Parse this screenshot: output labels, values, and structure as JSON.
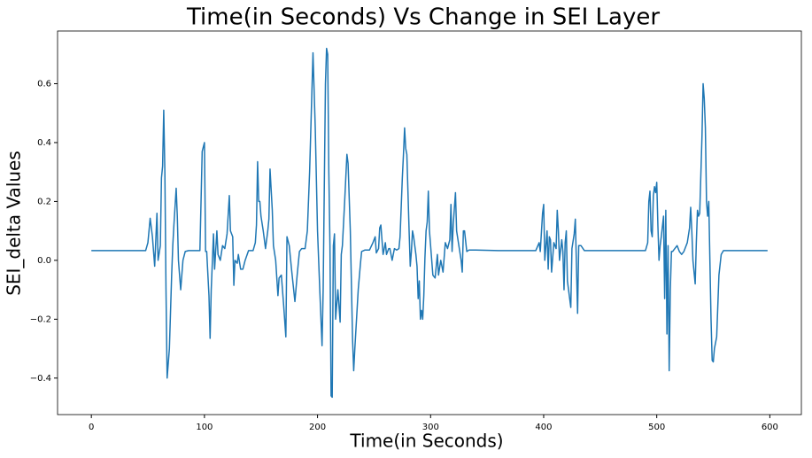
{
  "chart_data": {
    "type": "line",
    "title": "Time(in Seconds) Vs Change in SEI Layer",
    "x_label": "Time(in Seconds)",
    "y_label": "SEI_delta Values",
    "x": [
      0,
      48,
      50,
      52,
      54,
      56,
      58,
      59,
      61,
      62,
      63,
      64,
      65,
      66,
      67,
      69,
      71,
      72,
      73,
      75,
      76,
      77,
      79,
      81,
      83,
      86,
      96,
      98,
      100,
      101,
      102,
      104,
      105,
      106,
      108,
      109,
      111,
      112,
      114,
      116,
      118,
      120,
      122,
      123,
      125,
      126,
      127,
      129,
      130,
      132,
      134,
      136,
      139,
      143,
      145,
      146,
      147,
      148,
      149,
      150,
      152,
      154,
      156,
      157,
      158,
      160,
      161,
      163,
      165,
      166,
      168,
      170,
      172,
      173,
      175,
      177,
      180,
      182,
      184,
      186,
      189,
      191,
      193,
      196,
      198,
      200,
      202,
      204,
      205,
      207,
      208,
      209,
      210,
      211,
      212,
      213,
      214,
      215,
      216,
      218,
      220,
      221,
      222,
      224,
      226,
      227,
      229,
      231,
      232,
      233,
      236,
      238,
      239,
      242,
      246,
      249,
      251,
      252,
      254,
      255,
      256,
      258,
      260,
      261,
      263,
      264,
      266,
      268,
      270,
      272,
      273,
      275,
      276,
      277,
      278,
      279,
      281,
      282,
      283,
      284,
      285,
      287,
      288,
      289,
      290,
      291,
      292,
      293,
      294,
      295,
      296,
      297,
      298,
      299,
      300,
      302,
      304,
      306,
      307,
      309,
      311,
      313,
      315,
      317,
      318,
      319,
      320,
      322,
      323,
      325,
      327,
      328,
      329,
      330,
      332,
      334,
      340,
      360,
      393,
      396,
      397,
      399,
      400,
      401,
      402,
      403,
      404,
      405,
      406,
      407,
      409,
      411,
      412,
      413,
      414,
      416,
      417,
      418,
      419,
      420,
      421,
      422,
      424,
      425,
      427,
      428,
      430,
      431,
      433,
      436,
      490,
      492,
      493,
      494,
      495,
      496,
      497,
      498,
      499,
      500,
      501,
      502,
      503,
      504,
      506,
      507,
      508,
      509,
      510,
      511,
      512,
      513,
      514,
      516,
      518,
      520,
      522,
      524,
      527,
      529,
      530,
      531,
      532,
      534,
      535,
      536,
      537,
      538,
      540,
      541,
      542,
      543,
      544,
      545,
      546,
      547,
      548,
      549,
      550,
      551,
      553,
      555,
      557,
      559,
      598
    ],
    "series": [
      {
        "color": "#1f77b4",
        "values": [
          0.033,
          0.033,
          0.06,
          0.143,
          0.08,
          -0.02,
          0.16,
          0.0,
          0.05,
          0.28,
          0.32,
          0.51,
          0.3,
          -0.1,
          -0.4,
          -0.3,
          -0.05,
          0.05,
          0.12,
          0.245,
          0.15,
          0.0,
          -0.1,
          0.0,
          0.03,
          0.033,
          0.033,
          0.37,
          0.4,
          0.03,
          0.03,
          -0.12,
          -0.265,
          -0.1,
          0.09,
          -0.03,
          0.1,
          0.02,
          0.0,
          0.05,
          0.04,
          0.09,
          0.22,
          0.1,
          0.08,
          -0.085,
          0.0,
          -0.01,
          0.02,
          -0.03,
          -0.03,
          0.0,
          0.033,
          0.033,
          0.06,
          0.12,
          0.335,
          0.2,
          0.2,
          0.15,
          0.1,
          0.04,
          0.1,
          0.14,
          0.31,
          0.17,
          0.05,
          0.0,
          -0.12,
          -0.06,
          -0.05,
          -0.15,
          -0.26,
          0.08,
          0.05,
          -0.03,
          -0.14,
          -0.05,
          0.03,
          0.04,
          0.04,
          0.1,
          0.3,
          0.705,
          0.45,
          0.1,
          -0.1,
          -0.29,
          -0.1,
          0.6,
          0.72,
          0.7,
          0.3,
          0.05,
          -0.46,
          -0.465,
          0.05,
          0.09,
          -0.2,
          -0.1,
          -0.21,
          0.02,
          0.05,
          0.2,
          0.36,
          0.33,
          0.1,
          -0.27,
          -0.375,
          -0.3,
          -0.1,
          -0.01,
          0.03,
          0.035,
          0.035,
          0.06,
          0.08,
          0.025,
          0.04,
          0.11,
          0.12,
          0.02,
          0.06,
          0.02,
          0.04,
          0.04,
          0.0,
          0.04,
          0.035,
          0.04,
          0.08,
          0.28,
          0.36,
          0.45,
          0.38,
          0.36,
          0.1,
          -0.02,
          0.03,
          0.1,
          0.08,
          0.02,
          -0.02,
          -0.13,
          -0.07,
          -0.2,
          -0.17,
          -0.2,
          -0.12,
          0.01,
          0.1,
          0.13,
          0.235,
          0.1,
          0.05,
          -0.05,
          -0.06,
          0.02,
          -0.05,
          0.0,
          -0.04,
          0.06,
          0.04,
          0.07,
          0.19,
          0.03,
          0.12,
          0.23,
          0.1,
          0.05,
          0.0,
          -0.04,
          0.1,
          0.1,
          0.03,
          0.035,
          0.035,
          0.033,
          0.033,
          0.06,
          0.03,
          0.16,
          0.19,
          0.0,
          0.05,
          0.1,
          -0.03,
          0.08,
          0.07,
          -0.04,
          0.06,
          0.04,
          0.17,
          0.1,
          0.0,
          0.07,
          0.03,
          -0.1,
          0.06,
          0.1,
          -0.07,
          -0.1,
          -0.16,
          0.04,
          0.09,
          0.14,
          -0.18,
          0.05,
          0.05,
          0.033,
          0.033,
          0.06,
          0.2,
          0.235,
          0.1,
          0.08,
          0.22,
          0.25,
          0.23,
          0.265,
          0.12,
          0.0,
          0.05,
          0.08,
          0.15,
          -0.13,
          0.17,
          -0.25,
          0.05,
          -0.375,
          -0.1,
          0.03,
          0.03,
          0.04,
          0.05,
          0.03,
          0.02,
          0.03,
          0.06,
          0.11,
          0.18,
          0.1,
          0.0,
          -0.08,
          0.06,
          0.17,
          0.15,
          0.16,
          0.42,
          0.6,
          0.55,
          0.45,
          0.2,
          0.15,
          0.2,
          0.0,
          -0.2,
          -0.34,
          -0.345,
          -0.3,
          -0.26,
          -0.05,
          0.02,
          0.033,
          0.033
        ]
      }
    ],
    "xlim": [
      -29.9,
      627.9
    ],
    "ylim": [
      -0.524,
      0.779
    ],
    "xticks": [
      0,
      100,
      200,
      300,
      400,
      500,
      600
    ],
    "yticks": [
      {
        "value": -0.4,
        "label": "−0.4"
      },
      {
        "value": -0.2,
        "label": "−0.2"
      },
      {
        "value": 0,
        "label": "0.0"
      },
      0.2,
      0.4,
      0.6
    ],
    "grid": false
  }
}
